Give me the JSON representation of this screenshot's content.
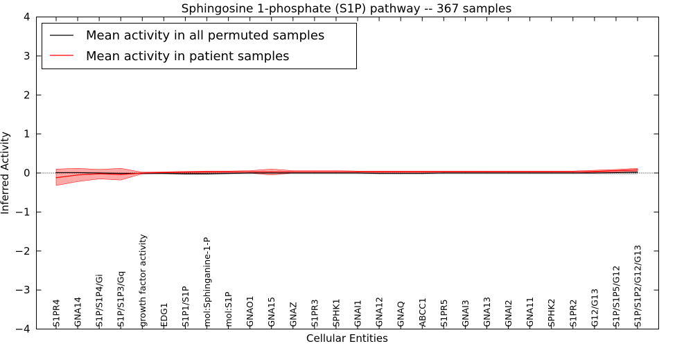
{
  "chart_data": {
    "type": "line",
    "title": "Sphingosine 1-phosphate (S1P) pathway -- 367 samples",
    "xlabel": "Cellular Entities",
    "ylabel": "Inferred Activity",
    "ylim": [
      -4,
      4
    ],
    "yticks": [
      -4,
      -3,
      -2,
      -1,
      0,
      1,
      2,
      3,
      4
    ],
    "ytick_labels": [
      "−4",
      "−3",
      "−2",
      "−1",
      "0",
      "1",
      "2",
      "3",
      "4"
    ],
    "legend_position": "top-left",
    "categories": [
      "S1PR4",
      "GNA14",
      "S1P/S1P4/Gi",
      "S1P/S1P3/Gq",
      "growth factor activity",
      "EDG1",
      "S1P1/S1P",
      "mol:Sphinganine-1-P",
      "mol:S1P",
      "GNAO1",
      "GNA15",
      "GNAZ",
      "S1PR3",
      "SPHK1",
      "GNAI1",
      "GNA12",
      "GNAQ",
      "ABCC1",
      "S1PR5",
      "GNAI3",
      "GNA13",
      "GNAI2",
      "GNA11",
      "SPHK2",
      "S1PR2",
      "G12/G13",
      "S1P/S1P5/G12",
      "S1P/S1P2/G12/G13"
    ],
    "series": [
      {
        "name": "Mean activity in all permuted samples",
        "color": "#000000",
        "values": [
          0.01,
          0.01,
          0.0,
          -0.01,
          -0.01,
          -0.01,
          -0.02,
          -0.02,
          -0.01,
          0.0,
          0.0,
          0.0,
          0.0,
          0.0,
          0.0,
          -0.01,
          -0.01,
          -0.01,
          0.0,
          0.0,
          0.0,
          0.0,
          0.0,
          0.0,
          0.0,
          0.0,
          0.01,
          0.02
        ],
        "band_low": [
          -0.02,
          -0.02,
          -0.03,
          -0.04,
          -0.04,
          -0.04,
          -0.05,
          -0.05,
          -0.04,
          -0.03,
          -0.03,
          -0.03,
          -0.03,
          -0.03,
          -0.03,
          -0.04,
          -0.04,
          -0.04,
          -0.03,
          -0.03,
          -0.03,
          -0.03,
          -0.03,
          -0.03,
          -0.03,
          -0.03,
          -0.04,
          -0.04
        ],
        "band_high": [
          0.04,
          0.04,
          0.03,
          0.02,
          0.02,
          0.02,
          0.01,
          0.01,
          0.02,
          0.03,
          0.03,
          0.03,
          0.03,
          0.03,
          0.03,
          0.02,
          0.02,
          0.02,
          0.03,
          0.03,
          0.03,
          0.03,
          0.03,
          0.03,
          0.03,
          0.03,
          0.06,
          0.07
        ]
      },
      {
        "name": "Mean activity in patient samples",
        "color": "#ff0000",
        "band_color": "#ff9999",
        "values": [
          -0.12,
          -0.05,
          -0.02,
          -0.04,
          0.0,
          0.01,
          0.02,
          0.03,
          0.03,
          0.03,
          0.03,
          0.03,
          0.03,
          0.03,
          0.03,
          0.03,
          0.03,
          0.03,
          0.03,
          0.03,
          0.03,
          0.03,
          0.03,
          0.03,
          0.03,
          0.04,
          0.06,
          0.08
        ],
        "band_low": [
          -0.32,
          -0.22,
          -0.15,
          -0.18,
          -0.02,
          -0.01,
          -0.01,
          0.0,
          0.0,
          0.0,
          -0.05,
          0.0,
          0.0,
          0.0,
          0.0,
          0.0,
          0.0,
          0.0,
          0.0,
          0.0,
          0.0,
          0.0,
          0.0,
          0.0,
          0.0,
          0.02,
          0.03,
          0.05
        ],
        "band_high": [
          0.1,
          0.12,
          0.09,
          0.12,
          0.02,
          0.03,
          0.04,
          0.05,
          0.05,
          0.06,
          0.1,
          0.06,
          0.06,
          0.06,
          0.05,
          0.05,
          0.05,
          0.05,
          0.05,
          0.05,
          0.05,
          0.05,
          0.05,
          0.05,
          0.05,
          0.07,
          0.09,
          0.12
        ]
      }
    ]
  }
}
